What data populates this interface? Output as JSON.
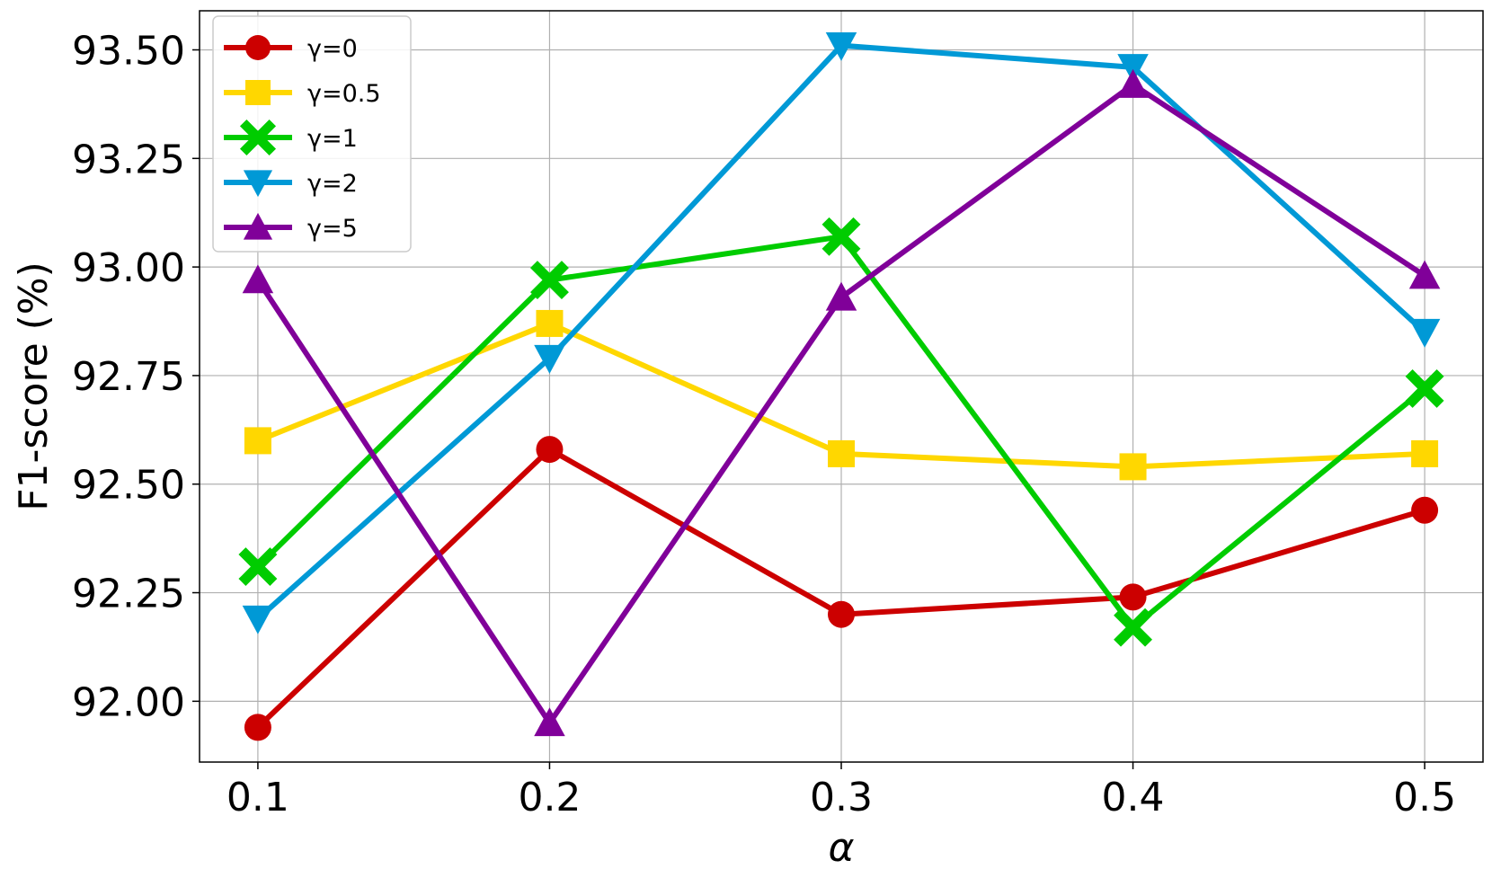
{
  "chart_data": {
    "type": "line",
    "title": "",
    "xlabel": "α",
    "ylabel": "F1-score (%)",
    "x": [
      0.1,
      0.2,
      0.3,
      0.4,
      0.5
    ],
    "x_tick_labels": [
      "0.1",
      "0.2",
      "0.3",
      "0.4",
      "0.5"
    ],
    "y_ticks": [
      92.0,
      92.25,
      92.5,
      92.75,
      93.0,
      93.25,
      93.5
    ],
    "y_tick_labels": [
      "92.00",
      "92.25",
      "92.50",
      "92.75",
      "93.00",
      "93.25",
      "93.50"
    ],
    "xlim": [
      0.08,
      0.52
    ],
    "ylim": [
      91.86,
      93.59
    ],
    "grid": true,
    "legend_position": "top-left",
    "series": [
      {
        "name": "γ=0",
        "color": "#cc0000",
        "marker": "circle",
        "values": [
          91.94,
          92.58,
          92.2,
          92.24,
          92.44
        ]
      },
      {
        "name": "γ=0.5",
        "color": "#ffd700",
        "marker": "square",
        "values": [
          92.6,
          92.87,
          92.57,
          92.54,
          92.57
        ]
      },
      {
        "name": "γ=1",
        "color": "#00cc00",
        "marker": "x",
        "values": [
          92.31,
          92.97,
          93.07,
          92.17,
          92.72
        ]
      },
      {
        "name": "γ=2",
        "color": "#0099d6",
        "marker": "triangle-down",
        "values": [
          92.19,
          92.79,
          93.51,
          93.46,
          92.85
        ]
      },
      {
        "name": "γ=5",
        "color": "#800099",
        "marker": "triangle-up",
        "values": [
          92.97,
          91.95,
          92.93,
          93.42,
          92.98
        ]
      }
    ]
  }
}
